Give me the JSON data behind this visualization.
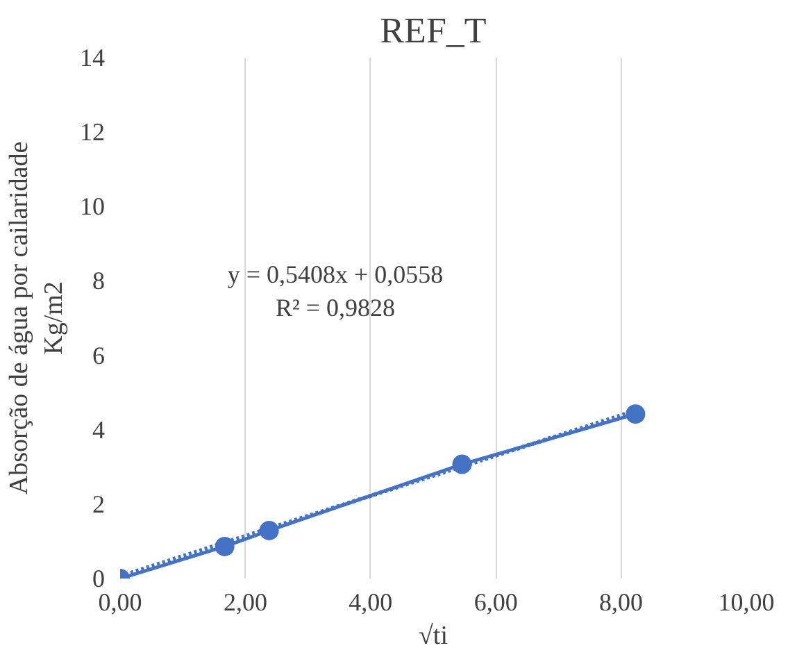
{
  "chart_data": {
    "type": "line",
    "title": "REF_T",
    "xlabel": "√ti",
    "ylabel": "Absorção de água por cailaridade\nKg/m2",
    "x": [
      0,
      1.67,
      2.38,
      5.46,
      8.23
    ],
    "series": [
      {
        "color": "#4472c4",
        "values": [
          0,
          0.86,
          1.29,
          3.07,
          4.42
        ],
        "marker": "circle",
        "line_style": "solid"
      },
      {
        "color": "#4472c4",
        "x": [
          0,
          8.23
        ],
        "values": [
          0.06,
          4.51
        ],
        "marker": "none",
        "line_style": "dotted"
      }
    ],
    "annotations": [
      "y = 0,5408x + 0,0558\nR² = 0,9828"
    ],
    "xlim": [
      0,
      10
    ],
    "xticks": [
      {
        "value": 0,
        "label": "0,00"
      },
      {
        "value": 2,
        "label": "2,00"
      },
      {
        "value": 4,
        "label": "4,00"
      },
      {
        "value": 6,
        "label": "6,00"
      },
      {
        "value": 8,
        "label": "8,00"
      },
      {
        "value": 10,
        "label": "10,00"
      }
    ],
    "ylim": [
      0,
      14
    ],
    "yticks": [
      0,
      2,
      4,
      6,
      8,
      10,
      12,
      14
    ],
    "grid": "x"
  }
}
